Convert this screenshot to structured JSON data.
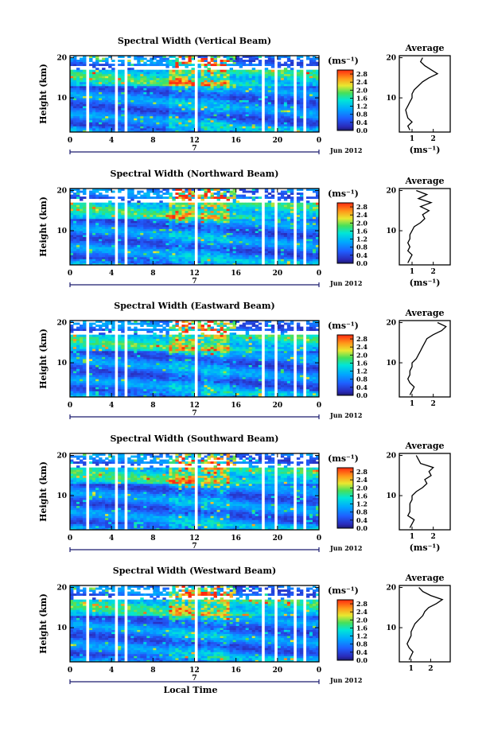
{
  "chart_data": [
    {
      "type": "heatmap",
      "title": "Spectral Width (Vertical Beam)",
      "ylabel": "Height (km)",
      "x_ticks": [
        "0",
        "4",
        "8",
        "12",
        "16",
        "20",
        "0"
      ],
      "y_ticks": [
        "20",
        "10"
      ],
      "date_day": "7",
      "date_label": "Jun 2012",
      "colorbar": {
        "unit": "(ms⁻¹)",
        "ticks": [
          "2.8",
          "2.4",
          "2.0",
          "1.6",
          "1.2",
          "0.8",
          "0.4",
          "0.0"
        ],
        "range": [
          0.0,
          3.0
        ]
      },
      "xlim": [
        0,
        24
      ],
      "ylim": [
        1.5,
        20.5
      ],
      "average": {
        "title": "Average",
        "x_ticks": [
          "1",
          "2"
        ],
        "y_ticks": [
          "20",
          "10"
        ],
        "xlabel": "(ms⁻¹)",
        "xlim": [
          0.4,
          2.8
        ],
        "heights": [
          2,
          3,
          4,
          5,
          6,
          7,
          8,
          9,
          10,
          11,
          12,
          13,
          14,
          15,
          16,
          17,
          18,
          19,
          20
        ],
        "values": [
          0.9,
          0.8,
          1.0,
          0.8,
          0.75,
          0.7,
          0.8,
          0.9,
          1.0,
          1.0,
          1.1,
          1.3,
          1.5,
          1.8,
          2.2,
          1.9,
          1.6,
          1.4,
          1.5
        ]
      }
    },
    {
      "type": "heatmap",
      "title": "Spectral Width (Northward Beam)",
      "ylabel": "Height (km)",
      "x_ticks": [
        "0",
        "4",
        "8",
        "12",
        "16",
        "20",
        "0"
      ],
      "y_ticks": [
        "20",
        "10"
      ],
      "date_day": "7",
      "date_label": "Jun 2012",
      "colorbar": {
        "unit": "(ms⁻¹)",
        "ticks": [
          "2.8",
          "2.4",
          "2.0",
          "1.6",
          "1.2",
          "0.8",
          "0.4",
          "0.0"
        ],
        "range": [
          0.0,
          3.0
        ]
      },
      "xlim": [
        0,
        24
      ],
      "ylim": [
        1.5,
        20.5
      ],
      "average": {
        "title": "Average",
        "x_ticks": [
          "1",
          "2"
        ],
        "y_ticks": [
          "20",
          "10"
        ],
        "xlabel": "(ms⁻¹)",
        "xlim": [
          0.4,
          2.8
        ],
        "heights": [
          2,
          3,
          4,
          5,
          6,
          7,
          8,
          9,
          10,
          11,
          12,
          13,
          14,
          15,
          16,
          17,
          18,
          19,
          20
        ],
        "values": [
          0.8,
          0.9,
          1.0,
          0.8,
          0.9,
          0.8,
          0.9,
          0.9,
          1.0,
          1.1,
          1.4,
          1.6,
          1.5,
          1.8,
          1.4,
          1.9,
          1.3,
          1.7,
          1.2
        ]
      }
    },
    {
      "type": "heatmap",
      "title": "Spectral Width (Eastward Beam)",
      "ylabel": "Height (km)",
      "x_ticks": [
        "0",
        "4",
        "8",
        "12",
        "16",
        "20",
        "0"
      ],
      "y_ticks": [
        "20",
        "10"
      ],
      "date_day": "7",
      "date_label": "Jun 2012",
      "colorbar": {
        "unit": "(ms⁻¹)",
        "ticks": [
          "2.8",
          "2.4",
          "2.0",
          "1.6",
          "1.2",
          "0.8",
          "0.4",
          "0.0"
        ],
        "range": [
          0.0,
          3.0
        ]
      },
      "xlim": [
        0,
        24
      ],
      "ylim": [
        1.5,
        20.5
      ],
      "average": {
        "title": "Average",
        "x_ticks": [
          "1",
          "2"
        ],
        "y_ticks": [
          "20",
          "10"
        ],
        "xlabel": "",
        "xlim": [
          0.4,
          2.8
        ],
        "heights": [
          2,
          3,
          4,
          5,
          6,
          7,
          8,
          9,
          10,
          11,
          12,
          13,
          14,
          15,
          16,
          17,
          18,
          19,
          20
        ],
        "values": [
          0.9,
          1.0,
          1.1,
          0.9,
          0.8,
          0.9,
          0.9,
          1.0,
          1.0,
          1.2,
          1.3,
          1.4,
          1.5,
          1.6,
          1.7,
          2.0,
          2.4,
          2.6,
          2.2
        ]
      }
    },
    {
      "type": "heatmap",
      "title": "Spectral Width (Southward Beam)",
      "ylabel": "Height (km)",
      "x_ticks": [
        "0",
        "4",
        "8",
        "12",
        "16",
        "20",
        "0"
      ],
      "y_ticks": [
        "20",
        "10"
      ],
      "date_day": "7",
      "date_label": "Jun 2012",
      "colorbar": {
        "unit": "(ms⁻¹)",
        "ticks": [
          "2.8",
          "2.4",
          "2.0",
          "1.6",
          "1.2",
          "0.8",
          "0.4",
          "0.0"
        ],
        "range": [
          0.0,
          3.0
        ]
      },
      "xlim": [
        0,
        24
      ],
      "ylim": [
        1.5,
        20.5
      ],
      "average": {
        "title": "Average",
        "x_ticks": [
          "1",
          "2"
        ],
        "y_ticks": [
          "20",
          "10"
        ],
        "xlabel": "(ms⁻¹)",
        "xlim": [
          0.4,
          2.8
        ],
        "heights": [
          2,
          3,
          4,
          5,
          6,
          7,
          8,
          9,
          10,
          11,
          12,
          13,
          14,
          15,
          16,
          17,
          18,
          19,
          20
        ],
        "values": [
          0.9,
          1.0,
          1.1,
          0.8,
          0.9,
          0.9,
          0.9,
          1.0,
          1.0,
          1.2,
          1.5,
          1.7,
          1.6,
          1.9,
          1.8,
          2.0,
          1.4,
          1.3,
          1.2
        ]
      }
    },
    {
      "type": "heatmap",
      "title": "Spectral Width (Westward Beam)",
      "ylabel": "Height (km)",
      "x_ticks": [
        "0",
        "4",
        "8",
        "12",
        "16",
        "20",
        "0"
      ],
      "y_ticks": [
        "20",
        "10"
      ],
      "date_day": "7",
      "date_label": "Jun 2012",
      "xlabel": "Local Time",
      "colorbar": {
        "unit": "(ms⁻¹)",
        "ticks": [
          "2.8",
          "2.4",
          "2.0",
          "1.6",
          "1.2",
          "0.8",
          "0.4",
          "0.0"
        ],
        "range": [
          0.0,
          3.0
        ]
      },
      "xlim": [
        0,
        24
      ],
      "ylim": [
        1.5,
        20.5
      ],
      "average": {
        "title": "Average",
        "x_ticks": [
          "1",
          "2"
        ],
        "y_ticks": [
          "20",
          "10"
        ],
        "xlabel": "",
        "xlim": [
          0.4,
          3.0
        ],
        "heights": [
          2,
          3,
          4,
          5,
          6,
          7,
          8,
          9,
          10,
          11,
          12,
          13,
          14,
          15,
          16,
          17,
          18,
          19,
          20
        ],
        "values": [
          0.9,
          1.0,
          1.1,
          0.9,
          0.8,
          0.9,
          1.0,
          1.0,
          1.1,
          1.2,
          1.4,
          1.6,
          1.7,
          1.9,
          2.3,
          2.6,
          2.0,
          1.6,
          1.4
        ]
      }
    }
  ]
}
